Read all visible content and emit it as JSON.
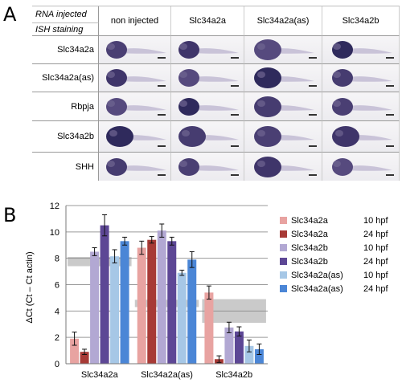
{
  "figure": {
    "panel_a_letter": "A",
    "panel_b_letter": "B"
  },
  "ish_table": {
    "header_rna": "RNA injected",
    "header_ish": "ISH staining",
    "columns": [
      "non injected",
      "Slc34a2a",
      "Slc34a2a(as)",
      "Slc34a2b"
    ],
    "rows": [
      "Slc34a2a",
      "Slc34a2a(as)",
      "Rbpja",
      "Slc34a2b",
      "SHH"
    ]
  },
  "chart_data": {
    "type": "bar",
    "ylabel": "ΔCt (Ct – Ct actin)",
    "ylim": [
      0,
      12
    ],
    "yticks": [
      0,
      2,
      4,
      6,
      8,
      10,
      12
    ],
    "categories": [
      "Slc34a2a",
      "Slc34a2a(as)",
      "Slc34a2b"
    ],
    "grid": true,
    "legend_position": "right",
    "series": [
      {
        "name": "Slc34a2a",
        "stage": "10 hpf",
        "color": "#e8a3a1",
        "values": [
          1.9,
          8.8,
          5.4
        ],
        "errors": [
          0.5,
          0.5,
          0.5
        ]
      },
      {
        "name": "Slc34a2a",
        "stage": "24 hpf",
        "color": "#a73a36",
        "values": [
          0.9,
          9.4,
          0.35
        ],
        "errors": [
          0.2,
          0.25,
          0.25
        ]
      },
      {
        "name": "Slc34a2b",
        "stage": "10 hpf",
        "color": "#b2a8d3",
        "values": [
          8.5,
          10.1,
          2.75
        ],
        "errors": [
          0.3,
          0.5,
          0.4
        ]
      },
      {
        "name": "Slc34a2b",
        "stage": "24 hpf",
        "color": "#5d4795",
        "values": [
          10.5,
          9.3,
          2.45
        ],
        "errors": [
          0.8,
          0.3,
          0.35
        ]
      },
      {
        "name": "Slc34a2a(as)",
        "stage": "10 hpf",
        "color": "#a6c7e6",
        "values": [
          8.15,
          6.9,
          1.35
        ],
        "errors": [
          0.5,
          0.2,
          0.45
        ]
      },
      {
        "name": "Slc34a2a(as)",
        "stage": "24 hpf",
        "color": "#4b86d6",
        "values": [
          9.3,
          7.9,
          1.1
        ],
        "errors": [
          0.3,
          0.6,
          0.4
        ]
      }
    ],
    "gray_bands": [
      {
        "category_index": 0,
        "y_range": [
          7.4,
          8.1
        ]
      },
      {
        "category_index": 1,
        "y_range": [
          4.3,
          4.85
        ]
      },
      {
        "category_index": 2,
        "y_range": [
          3.1,
          4.9
        ]
      }
    ]
  }
}
